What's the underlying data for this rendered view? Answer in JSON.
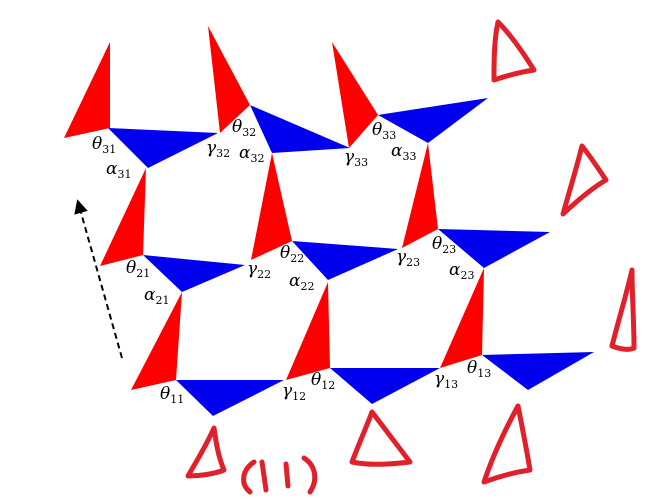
{
  "colors": {
    "red_triangle": "#ff0000",
    "blue_triangle": "#0000ee",
    "sketch": "#e0202a",
    "arrow": "#000000"
  },
  "labels": {
    "theta31": {
      "sym": "θ",
      "sub": "31"
    },
    "alpha31": {
      "sym": "α",
      "sub": "31"
    },
    "theta32": {
      "sym": "θ",
      "sub": "32"
    },
    "gamma32": {
      "sym": "γ",
      "sub": "32"
    },
    "alpha32": {
      "sym": "α",
      "sub": "32"
    },
    "theta33": {
      "sym": "θ",
      "sub": "33"
    },
    "gamma33": {
      "sym": "γ",
      "sub": "33"
    },
    "alpha33": {
      "sym": "α",
      "sub": "33"
    },
    "theta21": {
      "sym": "θ",
      "sub": "21"
    },
    "alpha21": {
      "sym": "α",
      "sub": "21"
    },
    "gamma22": {
      "sym": "γ",
      "sub": "22"
    },
    "theta22": {
      "sym": "θ",
      "sub": "22"
    },
    "alpha22": {
      "sym": "α",
      "sub": "22"
    },
    "gamma23": {
      "sym": "γ",
      "sub": "23"
    },
    "theta23": {
      "sym": "θ",
      "sub": "23"
    },
    "alpha23": {
      "sym": "α",
      "sub": "23"
    },
    "theta11": {
      "sym": "θ",
      "sub": "11"
    },
    "gamma12": {
      "sym": "γ",
      "sub": "12"
    },
    "theta12": {
      "sym": "θ",
      "sub": "12"
    },
    "gamma13": {
      "sym": "γ",
      "sub": "13"
    },
    "theta13": {
      "sym": "θ",
      "sub": "13"
    }
  }
}
